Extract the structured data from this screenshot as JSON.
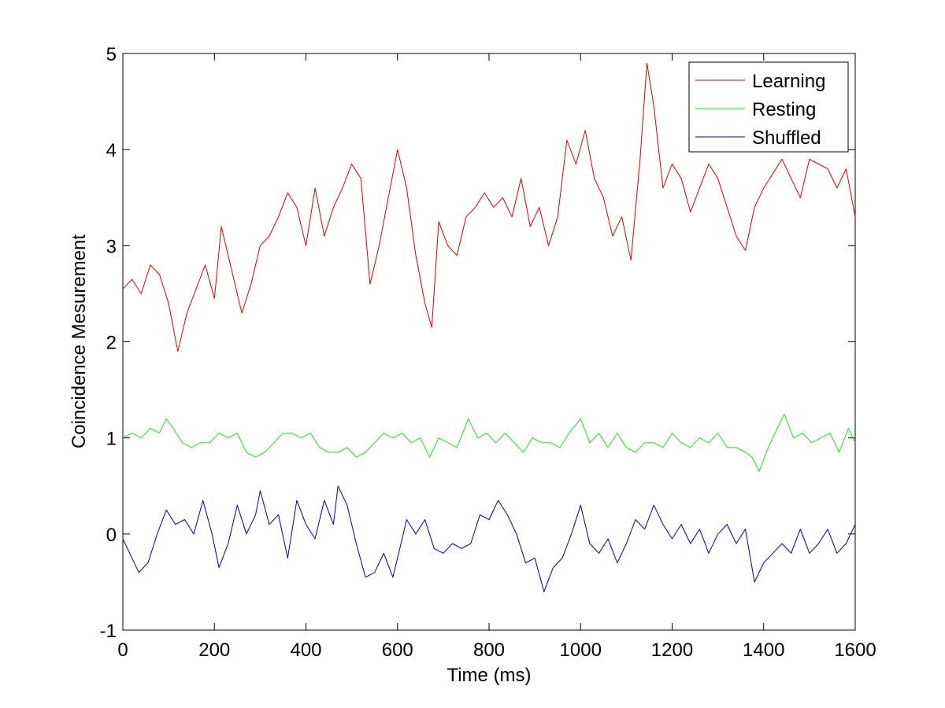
{
  "chart_data": {
    "type": "line",
    "title": "",
    "xlabel": "Time (ms)",
    "ylabel": "Coincidence Mesurement",
    "xlim": [
      0,
      1600
    ],
    "ylim": [
      -1,
      5
    ],
    "xticks": [
      0,
      200,
      400,
      600,
      800,
      1000,
      1200,
      1400,
      1600
    ],
    "yticks": [
      -1,
      0,
      1,
      2,
      3,
      4,
      5
    ],
    "grid": false,
    "legend_position": "top-right",
    "series": [
      {
        "name": "Learning",
        "color": "#dd0000",
        "x": [
          0,
          20,
          40,
          60,
          80,
          100,
          120,
          140,
          160,
          180,
          200,
          215,
          240,
          260,
          280,
          300,
          320,
          340,
          360,
          380,
          400,
          420,
          440,
          460,
          480,
          500,
          520,
          540,
          560,
          580,
          600,
          620,
          640,
          660,
          675,
          690,
          710,
          730,
          750,
          770,
          790,
          810,
          830,
          850,
          870,
          890,
          910,
          930,
          950,
          970,
          990,
          1010,
          1030,
          1050,
          1070,
          1090,
          1110,
          1130,
          1145,
          1160,
          1180,
          1200,
          1220,
          1240,
          1260,
          1280,
          1300,
          1320,
          1340,
          1360,
          1380,
          1400,
          1420,
          1440,
          1460,
          1480,
          1500,
          1520,
          1540,
          1560,
          1580,
          1600
        ],
        "values": [
          2.55,
          2.65,
          2.5,
          2.8,
          2.7,
          2.4,
          1.9,
          2.3,
          2.55,
          2.8,
          2.45,
          3.2,
          2.7,
          2.3,
          2.6,
          3.0,
          3.1,
          3.3,
          3.55,
          3.4,
          3.0,
          3.6,
          3.1,
          3.4,
          3.6,
          3.85,
          3.7,
          2.6,
          3.0,
          3.5,
          4.0,
          3.6,
          2.9,
          2.4,
          2.15,
          3.25,
          3.0,
          2.9,
          3.3,
          3.4,
          3.55,
          3.4,
          3.5,
          3.3,
          3.7,
          3.2,
          3.4,
          3.0,
          3.3,
          4.1,
          3.85,
          4.2,
          3.7,
          3.5,
          3.1,
          3.3,
          2.85,
          3.9,
          4.9,
          4.45,
          3.6,
          3.85,
          3.7,
          3.35,
          3.6,
          3.85,
          3.7,
          3.4,
          3.1,
          2.95,
          3.4,
          3.6,
          3.75,
          3.9,
          3.7,
          3.5,
          3.9,
          3.85,
          3.8,
          3.6,
          3.8,
          3.3
        ]
      },
      {
        "name": "Resting",
        "color": "#22dd22",
        "x": [
          0,
          20,
          40,
          60,
          80,
          95,
          110,
          130,
          150,
          170,
          190,
          210,
          230,
          250,
          270,
          290,
          310,
          330,
          350,
          370,
          390,
          410,
          430,
          450,
          470,
          490,
          510,
          530,
          550,
          570,
          590,
          610,
          630,
          650,
          670,
          690,
          710,
          730,
          755,
          775,
          795,
          815,
          835,
          855,
          875,
          895,
          915,
          935,
          955,
          975,
          1000,
          1020,
          1040,
          1060,
          1080,
          1100,
          1120,
          1140,
          1160,
          1180,
          1200,
          1220,
          1240,
          1260,
          1280,
          1300,
          1320,
          1340,
          1360,
          1375,
          1390,
          1410,
          1425,
          1445,
          1465,
          1485,
          1505,
          1525,
          1545,
          1565,
          1585,
          1600
        ],
        "values": [
          1.0,
          1.05,
          1.0,
          1.1,
          1.05,
          1.2,
          1.1,
          0.95,
          0.9,
          0.95,
          0.95,
          1.05,
          1.0,
          1.05,
          0.85,
          0.8,
          0.85,
          0.95,
          1.05,
          1.05,
          1.0,
          1.05,
          0.9,
          0.85,
          0.85,
          0.9,
          0.8,
          0.85,
          0.95,
          1.05,
          1.0,
          1.05,
          0.95,
          1.0,
          0.8,
          1.0,
          0.95,
          0.9,
          1.2,
          1.0,
          1.05,
          0.95,
          1.05,
          0.95,
          0.85,
          1.0,
          0.95,
          0.95,
          0.9,
          1.05,
          1.2,
          0.95,
          1.05,
          0.9,
          1.05,
          0.9,
          0.85,
          0.95,
          0.95,
          0.9,
          1.05,
          0.95,
          0.9,
          1.0,
          0.95,
          1.05,
          0.9,
          0.9,
          0.85,
          0.8,
          0.65,
          0.9,
          1.05,
          1.25,
          1.0,
          1.05,
          0.95,
          1.0,
          1.05,
          0.85,
          1.1,
          0.95
        ]
      },
      {
        "name": "Shuffled",
        "color": "#000099",
        "x": [
          0,
          15,
          35,
          55,
          75,
          95,
          115,
          135,
          155,
          175,
          195,
          210,
          230,
          250,
          270,
          290,
          300,
          320,
          340,
          360,
          380,
          400,
          420,
          440,
          460,
          470,
          490,
          510,
          530,
          550,
          570,
          590,
          605,
          620,
          640,
          660,
          680,
          700,
          720,
          740,
          760,
          780,
          800,
          820,
          840,
          860,
          880,
          900,
          920,
          940,
          960,
          980,
          1000,
          1020,
          1040,
          1060,
          1080,
          1100,
          1120,
          1140,
          1160,
          1180,
          1200,
          1220,
          1240,
          1260,
          1280,
          1300,
          1320,
          1340,
          1360,
          1380,
          1400,
          1420,
          1440,
          1460,
          1480,
          1500,
          1520,
          1540,
          1560,
          1580,
          1600
        ],
        "values": [
          -0.05,
          -0.2,
          -0.4,
          -0.3,
          0.0,
          0.25,
          0.1,
          0.15,
          0.0,
          0.35,
          0.0,
          -0.35,
          -0.1,
          0.3,
          0.0,
          0.2,
          0.45,
          0.1,
          0.2,
          -0.25,
          0.35,
          0.1,
          -0.05,
          0.35,
          0.1,
          0.5,
          0.3,
          -0.1,
          -0.45,
          -0.4,
          -0.2,
          -0.45,
          -0.15,
          0.15,
          0.0,
          0.15,
          -0.15,
          -0.2,
          -0.1,
          -0.15,
          -0.1,
          0.2,
          0.15,
          0.35,
          0.2,
          0.0,
          -0.3,
          -0.25,
          -0.6,
          -0.35,
          -0.25,
          0.0,
          0.3,
          -0.1,
          -0.2,
          -0.05,
          -0.3,
          -0.1,
          0.15,
          0.05,
          0.3,
          0.1,
          -0.05,
          0.1,
          -0.1,
          0.05,
          -0.2,
          0.0,
          0.1,
          -0.1,
          0.05,
          -0.5,
          -0.3,
          -0.2,
          -0.1,
          -0.2,
          0.05,
          -0.2,
          -0.1,
          0.05,
          -0.2,
          -0.1,
          0.1
        ]
      }
    ]
  }
}
